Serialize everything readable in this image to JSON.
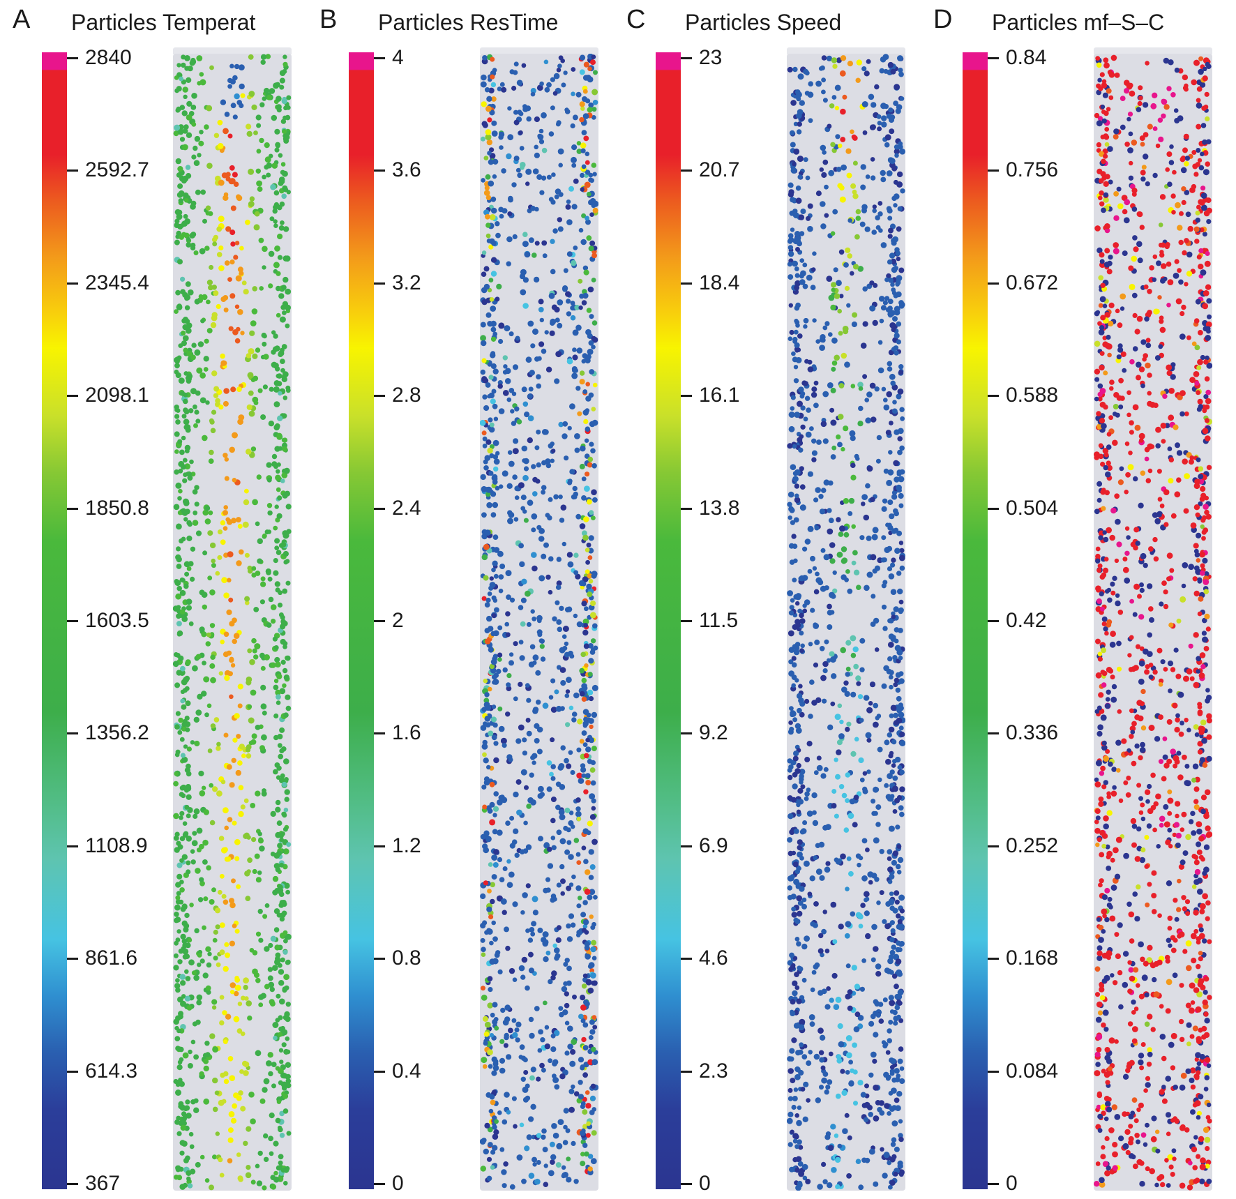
{
  "panels": [
    {
      "letter": "A",
      "title": "Particles Temperat",
      "ticks": [
        "2840",
        "2592.7",
        "2345.4",
        "2098.1",
        "1850.8",
        "1603.5",
        "1356.2",
        "1108.9",
        "861.6",
        "614.3",
        "367"
      ],
      "field": "temperature"
    },
    {
      "letter": "B",
      "title": "Particles ResTime",
      "ticks": [
        "4",
        "3.6",
        "3.2",
        "2.8",
        "2.4",
        "2",
        "1.6",
        "1.2",
        "0.8",
        "0.4",
        "0"
      ],
      "field": "restime"
    },
    {
      "letter": "C",
      "title": "Particles Speed",
      "ticks": [
        "23",
        "20.7",
        "18.4",
        "16.1",
        "13.8",
        "11.5",
        "9.2",
        "6.9",
        "4.6",
        "2.3",
        "0"
      ],
      "field": "speed"
    },
    {
      "letter": "D",
      "title": "Particles mf–S–C",
      "ticks": [
        "0.84",
        "0.756",
        "0.672",
        "0.588",
        "0.504",
        "0.42",
        "0.336",
        "0.252",
        "0.168",
        "0.084",
        "0"
      ],
      "field": "mfsc"
    }
  ],
  "colormap": [
    "#2b3590",
    "#2a5fb0",
    "#2f8fd0",
    "#46c3e2",
    "#5ec4b0",
    "#3dae4a",
    "#4ab93c",
    "#86c834",
    "#c9e02a",
    "#f8f400",
    "#f39a1a",
    "#ec5a1f",
    "#e8202a",
    "#e8158c"
  ]
}
